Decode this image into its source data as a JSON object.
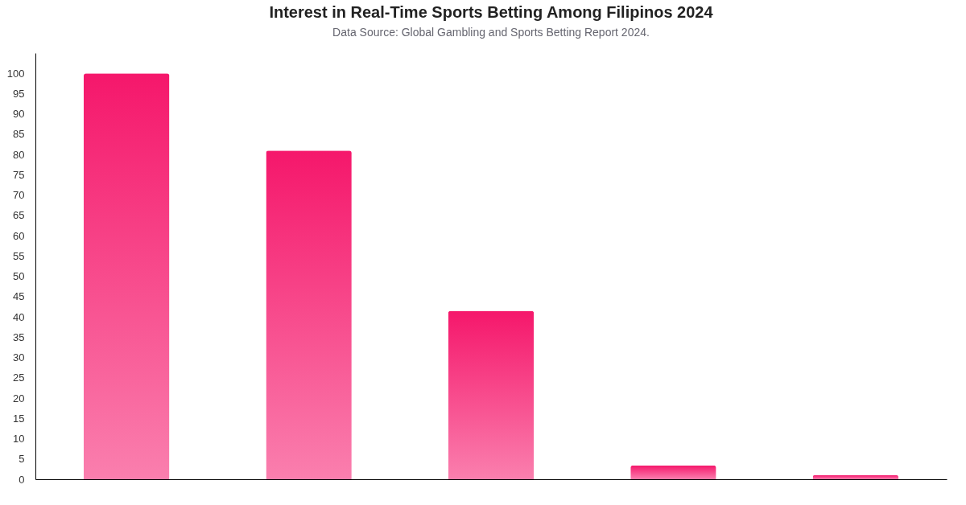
{
  "chart_data": {
    "type": "bar",
    "title": "Interest in Real-Time Sports Betting Among Filipinos 2024",
    "subtitle": "Data Source: Global Gambling and Sports Betting Report 2024.",
    "categories": [
      null,
      null,
      null,
      null,
      null
    ],
    "values": [
      100,
      81,
      41.5,
      3.4,
      1
    ],
    "color": "#f5176b",
    "ylim": [
      0,
      105
    ],
    "yticks": [
      0,
      5,
      10,
      15,
      20,
      25,
      30,
      35,
      40,
      45,
      50,
      55,
      60,
      65,
      70,
      75,
      80,
      85,
      90,
      95,
      100
    ],
    "tick_labels": "y"
  }
}
